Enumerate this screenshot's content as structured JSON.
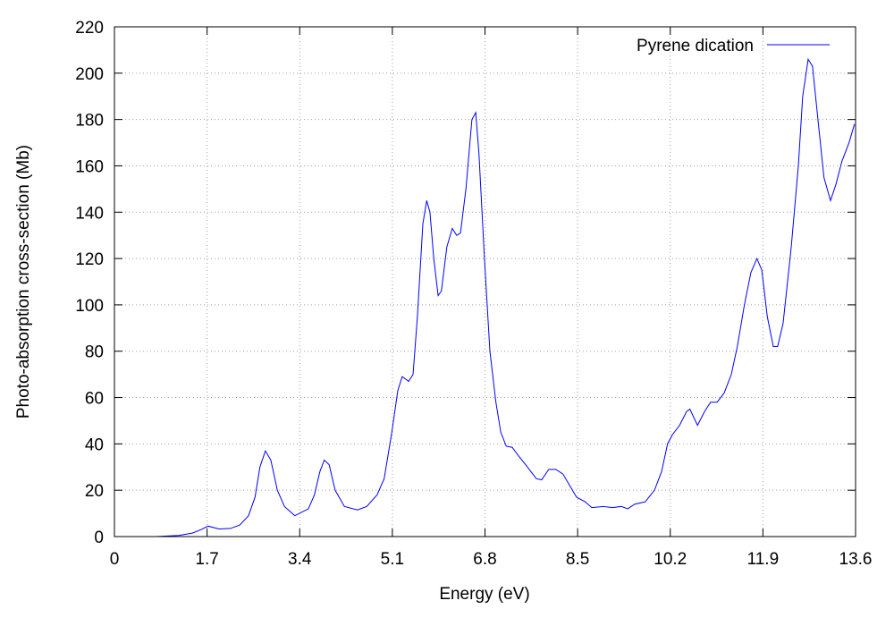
{
  "chart_data": {
    "type": "line",
    "xlabel": "Energy (eV)",
    "ylabel": "Photo-absorption cross-section (Mb)",
    "x": [
      0.77,
      1.18,
      1.43,
      1.59,
      1.72,
      1.92,
      2.13,
      2.3,
      2.46,
      2.58,
      2.67,
      2.77,
      2.87,
      2.99,
      3.12,
      3.31,
      3.56,
      3.67,
      3.77,
      3.85,
      3.94,
      4.05,
      4.22,
      4.46,
      4.63,
      4.82,
      4.95,
      5.09,
      5.2,
      5.28,
      5.4,
      5.48,
      5.56,
      5.66,
      5.73,
      5.79,
      5.86,
      5.94,
      6.0,
      6.1,
      6.2,
      6.28,
      6.35,
      6.45,
      6.56,
      6.63,
      6.69,
      6.79,
      6.89,
      7.0,
      7.09,
      7.19,
      7.3,
      7.41,
      7.58,
      7.74,
      7.84,
      7.97,
      8.1,
      8.23,
      8.33,
      8.48,
      8.64,
      8.76,
      8.97,
      9.14,
      9.3,
      9.42,
      9.55,
      9.74,
      9.91,
      10.04,
      10.15,
      10.24,
      10.37,
      10.5,
      10.56,
      10.7,
      10.83,
      10.94,
      11.06,
      11.19,
      11.32,
      11.43,
      11.56,
      11.68,
      11.79,
      11.88,
      11.98,
      12.09,
      12.17,
      12.27,
      12.42,
      12.55,
      12.63,
      12.73,
      12.81,
      12.91,
      13.02,
      13.14,
      13.24,
      13.35,
      13.48,
      13.58
    ],
    "series": [
      {
        "name": "Pyrene dication",
        "color": "#0000ff",
        "values": [
          0,
          0.5,
          1.5,
          3,
          4.5,
          3.3,
          3.5,
          5,
          9,
          17,
          30,
          37,
          33,
          20,
          13,
          9,
          12,
          18,
          28,
          33,
          31,
          20,
          13,
          11.5,
          13,
          18,
          25,
          45,
          63,
          69,
          67,
          70,
          95,
          135,
          145,
          140,
          120,
          104,
          106,
          125,
          133,
          130,
          131,
          150,
          180,
          183,
          165,
          120,
          80,
          58,
          45,
          39,
          38.5,
          35,
          30,
          25,
          24.5,
          29,
          29,
          27,
          23,
          17,
          15,
          12.5,
          13,
          12.5,
          13,
          12,
          14,
          15,
          20,
          28,
          40,
          44,
          48,
          54,
          55,
          48,
          54,
          58,
          58,
          62,
          70,
          82,
          100,
          114,
          120,
          115,
          95,
          82,
          82,
          92,
          125,
          160,
          190,
          206,
          203,
          180,
          155,
          145,
          152,
          162,
          170,
          178
        ]
      }
    ],
    "xlim": [
      0,
      13.6
    ],
    "xticks": [
      0,
      1.7,
      3.4,
      5.1,
      6.8,
      8.5,
      10.2,
      11.9,
      13.6
    ],
    "ylim": [
      0,
      220
    ],
    "yticks": [
      0,
      20,
      40,
      60,
      80,
      100,
      120,
      140,
      160,
      180,
      200,
      220
    ],
    "grid": true,
    "legend": "upper right"
  }
}
